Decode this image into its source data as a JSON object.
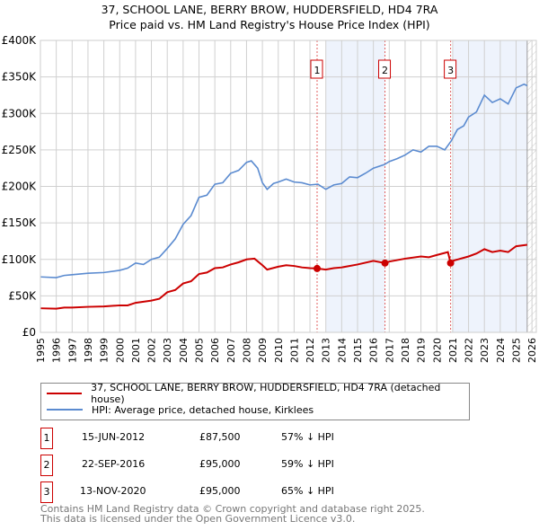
{
  "chart_data": {
    "type": "line",
    "title": "37, SCHOOL LANE, BERRY BROW, HUDDERSFIELD, HD4 7RA",
    "subtitle": "Price paid vs. HM Land Registry's House Price Index (HPI)",
    "xlim": [
      1995,
      2026
    ],
    "ylim": [
      0,
      400000
    ],
    "y_ticks": [
      {
        "v": 0,
        "label": "£0"
      },
      {
        "v": 50000,
        "label": "£50K"
      },
      {
        "v": 100000,
        "label": "£100K"
      },
      {
        "v": 150000,
        "label": "£150K"
      },
      {
        "v": 200000,
        "label": "£200K"
      },
      {
        "v": 250000,
        "label": "£250K"
      },
      {
        "v": 300000,
        "label": "£300K"
      },
      {
        "v": 350000,
        "label": "£350K"
      },
      {
        "v": 400000,
        "label": "£400K"
      }
    ],
    "x_ticks": [
      "1995",
      "1996",
      "1997",
      "1998",
      "1999",
      "2000",
      "2001",
      "2002",
      "2003",
      "2004",
      "2005",
      "2006",
      "2007",
      "2008",
      "2009",
      "2010",
      "2011",
      "2012",
      "2013",
      "2014",
      "2015",
      "2016",
      "2017",
      "2018",
      "2019",
      "2020",
      "2021",
      "2022",
      "2023",
      "2024",
      "2025",
      "2026"
    ],
    "grid": true,
    "shaded_ranges": [
      [
        2013.0,
        2016.73
      ],
      [
        2021.0,
        2025.7
      ]
    ],
    "hatched_from": 2025.7,
    "series": [
      {
        "name": "37, SCHOOL LANE, BERRY BROW, HUDDERSFIELD, HD4 7RA (detached house)",
        "color": "#cc0000",
        "x": [
          1995,
          1996,
          1996.5,
          1997,
          1998,
          1999,
          2000,
          2000.5,
          2001,
          2002,
          2002.5,
          2003,
          2003.5,
          2004,
          2004.5,
          2005,
          2005.5,
          2006,
          2006.5,
          2007,
          2007.5,
          2008,
          2008.5,
          2009,
          2009.3,
          2010,
          2010.5,
          2011,
          2011.5,
          2012,
          2012.45,
          2013,
          2013.5,
          2014,
          2015,
          2016,
          2016.73,
          2017,
          2018,
          2019,
          2019.5,
          2020,
          2020.7,
          2020.87,
          2021,
          2022,
          2022.5,
          2023,
          2023.5,
          2024,
          2024.5,
          2025,
          2025.7
        ],
        "y": [
          33000,
          32500,
          34000,
          34000,
          35000,
          35500,
          37000,
          37000,
          40500,
          43500,
          46000,
          55000,
          58000,
          67000,
          70000,
          80000,
          82000,
          88000,
          89000,
          93000,
          96000,
          100000,
          101000,
          92000,
          86000,
          90000,
          92000,
          91000,
          89000,
          88000,
          87500,
          86000,
          88000,
          89000,
          93000,
          98000,
          95000,
          97000,
          101000,
          104000,
          103000,
          106000,
          110000,
          95000,
          98000,
          104000,
          108000,
          114000,
          110000,
          112000,
          110000,
          118000,
          120000
        ]
      },
      {
        "name": "HPI: Average price, detached house, Kirklees",
        "color": "#5b8bd0",
        "x": [
          1995,
          1996,
          1996.5,
          1997,
          1998,
          1999,
          2000,
          2000.5,
          2001,
          2001.5,
          2002,
          2002.5,
          2003,
          2003.5,
          2004,
          2004.5,
          2005,
          2005.5,
          2006,
          2006.5,
          2007,
          2007.5,
          2008,
          2008.3,
          2008.7,
          2009,
          2009.3,
          2009.7,
          2010,
          2010.5,
          2011,
          2011.5,
          2012,
          2012.5,
          2013,
          2013.5,
          2014,
          2014.5,
          2015,
          2015.5,
          2016,
          2016.7,
          2017,
          2017.5,
          2018,
          2018.5,
          2019,
          2019.5,
          2020,
          2020.5,
          2020.9,
          2021.3,
          2021.7,
          2022,
          2022.5,
          2023,
          2023.5,
          2024,
          2024.5,
          2025,
          2025.5,
          2025.7
        ],
        "y": [
          76000,
          75000,
          78000,
          79000,
          81000,
          82000,
          85000,
          88000,
          95000,
          93000,
          100000,
          103000,
          115000,
          128000,
          148000,
          160000,
          185000,
          188000,
          203000,
          205000,
          218000,
          222000,
          233000,
          235000,
          225000,
          205000,
          196000,
          204000,
          206000,
          210000,
          206000,
          205000,
          202000,
          203000,
          196000,
          202000,
          204000,
          213000,
          212000,
          218000,
          225000,
          230000,
          234000,
          238000,
          243000,
          250000,
          247000,
          255000,
          255000,
          250000,
          262000,
          278000,
          283000,
          295000,
          302000,
          325000,
          315000,
          320000,
          313000,
          335000,
          340000,
          338000
        ]
      }
    ],
    "sales": [
      {
        "id": "1",
        "x": 2012.45,
        "y": 87500
      },
      {
        "id": "2",
        "x": 2016.73,
        "y": 95000
      },
      {
        "id": "3",
        "x": 2020.87,
        "y": 95000
      }
    ]
  },
  "legend": {
    "property": "37, SCHOOL LANE, BERRY BROW, HUDDERSFIELD, HD4 7RA (detached house)",
    "hpi": "HPI: Average price, detached house, Kirklees"
  },
  "transactions": [
    {
      "id": "1",
      "date": "15-JUN-2012",
      "price": "£87,500",
      "hpi": "57% ↓ HPI"
    },
    {
      "id": "2",
      "date": "22-SEP-2016",
      "price": "£95,000",
      "hpi": "59% ↓ HPI"
    },
    {
      "id": "3",
      "date": "13-NOV-2020",
      "price": "£95,000",
      "hpi": "65% ↓ HPI"
    }
  ],
  "footer": {
    "line1": "Contains HM Land Registry data © Crown copyright and database right 2025.",
    "line2": "This data is licensed under the Open Government Licence v3.0."
  }
}
